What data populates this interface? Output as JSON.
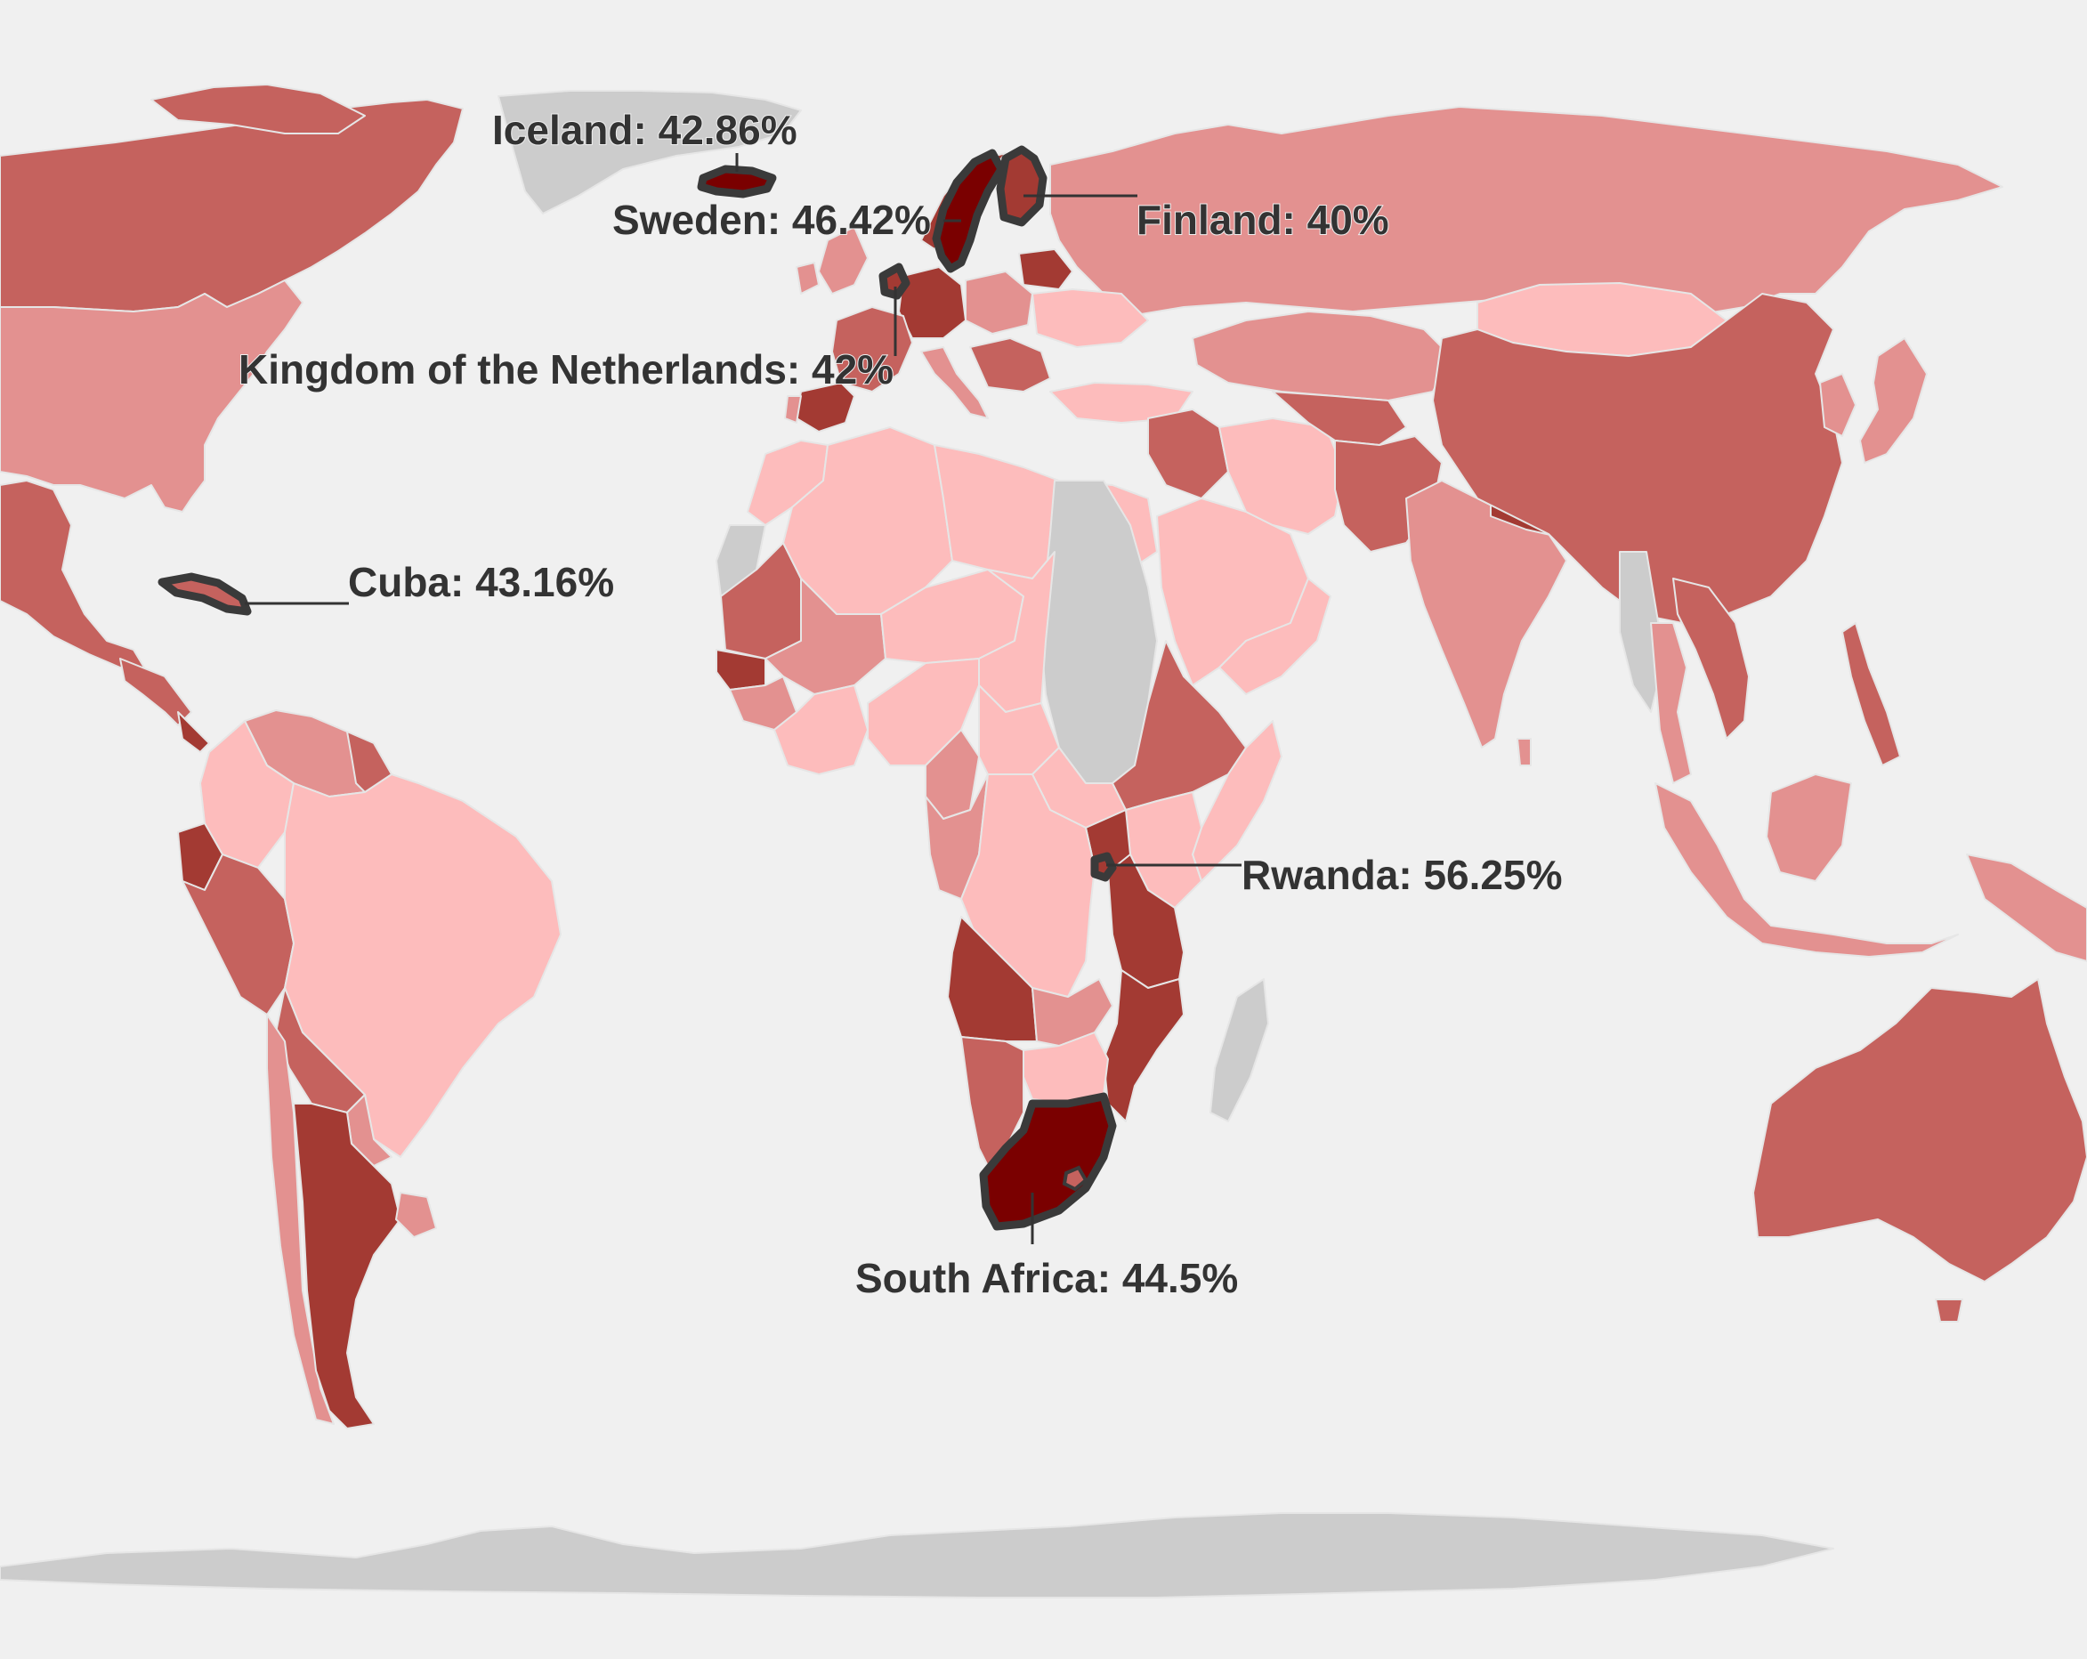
{
  "map": {
    "type": "choropleth",
    "projection": "world",
    "colors": {
      "background": "#f0f0f0",
      "no_data": "#cccccc",
      "tier_1": "#fdbcbc",
      "tier_2": "#e39190",
      "tier_3": "#c5625e",
      "tier_4": "#a33a33",
      "tier_5": "#7a0000",
      "highlight_outline": "#3a3a3a",
      "label_text": "#333333"
    },
    "labels": [
      {
        "id": "iceland",
        "text": "Iceland: 42.86%"
      },
      {
        "id": "sweden",
        "text": "Sweden: 46.42%"
      },
      {
        "id": "finland",
        "text": "Finland: 40%"
      },
      {
        "id": "netherlands",
        "text": "Kingdom of the Netherlands: 42%"
      },
      {
        "id": "cuba",
        "text": "Cuba: 43.16%"
      },
      {
        "id": "rwanda",
        "text": "Rwanda: 56.25%"
      },
      {
        "id": "south-africa",
        "text": "South Africa: 44.5%"
      }
    ]
  }
}
